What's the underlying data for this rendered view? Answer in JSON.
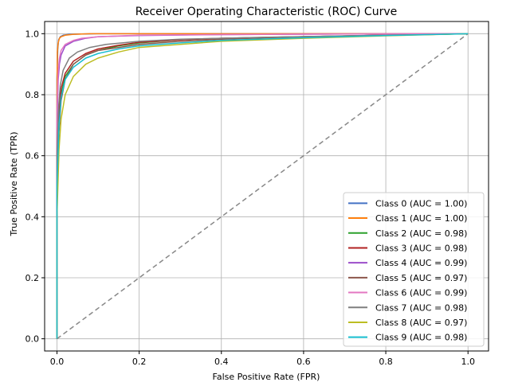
{
  "chart_data": {
    "type": "line",
    "title": "Receiver Operating Characteristic (ROC) Curve",
    "xlabel": "False Positive Rate (FPR)",
    "ylabel": "True Positive Rate (TPR)",
    "xlim": [
      -0.03,
      1.05
    ],
    "ylim": [
      -0.04,
      1.04
    ],
    "xticks": [
      "0.0",
      "0.2",
      "0.4",
      "0.6",
      "0.8",
      "1.0"
    ],
    "yticks": [
      "0.0",
      "0.2",
      "0.4",
      "0.6",
      "0.8",
      "1.0"
    ],
    "grid": true,
    "legend_position": "lower-right",
    "reference_line": {
      "style": "dashed",
      "color": "#888888",
      "x": [
        0,
        1
      ],
      "y": [
        0,
        1
      ]
    },
    "series": [
      {
        "name": "Class 0 (AUC = 1.00)",
        "color": "#4472c4",
        "x": [
          0,
          0,
          0.002,
          0.004,
          0.008,
          0.015,
          0.03,
          0.06,
          0.1,
          1.0
        ],
        "y": [
          0,
          0.85,
          0.95,
          0.98,
          0.99,
          0.995,
          0.998,
          0.999,
          1.0,
          1.0
        ]
      },
      {
        "name": "Class 1 (AUC = 1.00)",
        "color": "#ff7f0e",
        "x": [
          0,
          0,
          0.001,
          0.003,
          0.006,
          0.01,
          0.02,
          0.04,
          0.08,
          1.0
        ],
        "y": [
          0,
          0.8,
          0.94,
          0.97,
          0.985,
          0.99,
          0.995,
          0.998,
          1.0,
          1.0
        ]
      },
      {
        "name": "Class 2 (AUC = 0.98)",
        "color": "#2ca02c",
        "x": [
          0,
          0,
          0.005,
          0.01,
          0.02,
          0.04,
          0.07,
          0.1,
          0.15,
          0.2,
          0.3,
          0.4,
          0.6,
          0.8,
          1.0
        ],
        "y": [
          0,
          0.5,
          0.72,
          0.8,
          0.86,
          0.9,
          0.93,
          0.945,
          0.96,
          0.97,
          0.98,
          0.985,
          0.99,
          0.995,
          1.0
        ]
      },
      {
        "name": "Class 3 (AUC = 0.98)",
        "color": "#b22222",
        "x": [
          0,
          0,
          0.005,
          0.01,
          0.02,
          0.04,
          0.07,
          0.1,
          0.15,
          0.2,
          0.3,
          0.4,
          0.6,
          0.8,
          1.0
        ],
        "y": [
          0,
          0.55,
          0.74,
          0.82,
          0.87,
          0.91,
          0.935,
          0.95,
          0.962,
          0.972,
          0.98,
          0.985,
          0.99,
          0.995,
          1.0
        ]
      },
      {
        "name": "Class 4 (AUC = 0.99)",
        "color": "#9b4dca",
        "x": [
          0,
          0,
          0.003,
          0.006,
          0.01,
          0.02,
          0.04,
          0.07,
          0.1,
          0.2,
          0.4,
          0.7,
          1.0
        ],
        "y": [
          0,
          0.7,
          0.85,
          0.9,
          0.93,
          0.96,
          0.975,
          0.985,
          0.99,
          0.994,
          0.997,
          0.999,
          1.0
        ]
      },
      {
        "name": "Class 5 (AUC = 0.97)",
        "color": "#8c564b",
        "x": [
          0,
          0,
          0.005,
          0.01,
          0.02,
          0.04,
          0.07,
          0.1,
          0.15,
          0.2,
          0.3,
          0.4,
          0.6,
          0.8,
          1.0
        ],
        "y": [
          0,
          0.45,
          0.68,
          0.78,
          0.85,
          0.9,
          0.93,
          0.945,
          0.955,
          0.965,
          0.975,
          0.982,
          0.99,
          0.995,
          1.0
        ]
      },
      {
        "name": "Class 6 (AUC = 0.99)",
        "color": "#e377c2",
        "x": [
          0,
          0,
          0.003,
          0.006,
          0.01,
          0.02,
          0.04,
          0.06,
          0.1,
          0.2,
          0.4,
          0.7,
          1.0
        ],
        "y": [
          0,
          0.75,
          0.88,
          0.92,
          0.945,
          0.965,
          0.978,
          0.985,
          0.99,
          0.995,
          0.997,
          0.999,
          1.0
        ]
      },
      {
        "name": "Class 7 (AUC = 0.98)",
        "color": "#7f7f7f",
        "x": [
          0,
          0,
          0.004,
          0.008,
          0.015,
          0.03,
          0.05,
          0.08,
          0.12,
          0.2,
          0.3,
          0.5,
          0.7,
          0.9,
          1.0
        ],
        "y": [
          0,
          0.6,
          0.76,
          0.83,
          0.88,
          0.92,
          0.94,
          0.955,
          0.965,
          0.975,
          0.982,
          0.988,
          0.993,
          0.997,
          1.0
        ]
      },
      {
        "name": "Class 8 (AUC = 0.97)",
        "color": "#bcbd22",
        "x": [
          0,
          0,
          0.005,
          0.01,
          0.02,
          0.04,
          0.07,
          0.1,
          0.15,
          0.2,
          0.3,
          0.4,
          0.6,
          0.8,
          1.0
        ],
        "y": [
          0,
          0.4,
          0.62,
          0.72,
          0.8,
          0.86,
          0.9,
          0.92,
          0.94,
          0.955,
          0.965,
          0.975,
          0.985,
          0.993,
          1.0
        ]
      },
      {
        "name": "Class 9 (AUC = 0.98)",
        "color": "#17becf",
        "x": [
          0,
          0,
          0.005,
          0.01,
          0.02,
          0.04,
          0.07,
          0.1,
          0.15,
          0.2,
          0.3,
          0.4,
          0.6,
          0.8,
          1.0
        ],
        "y": [
          0,
          0.5,
          0.7,
          0.79,
          0.85,
          0.89,
          0.92,
          0.935,
          0.95,
          0.96,
          0.97,
          0.978,
          0.987,
          0.994,
          1.0
        ]
      }
    ]
  }
}
